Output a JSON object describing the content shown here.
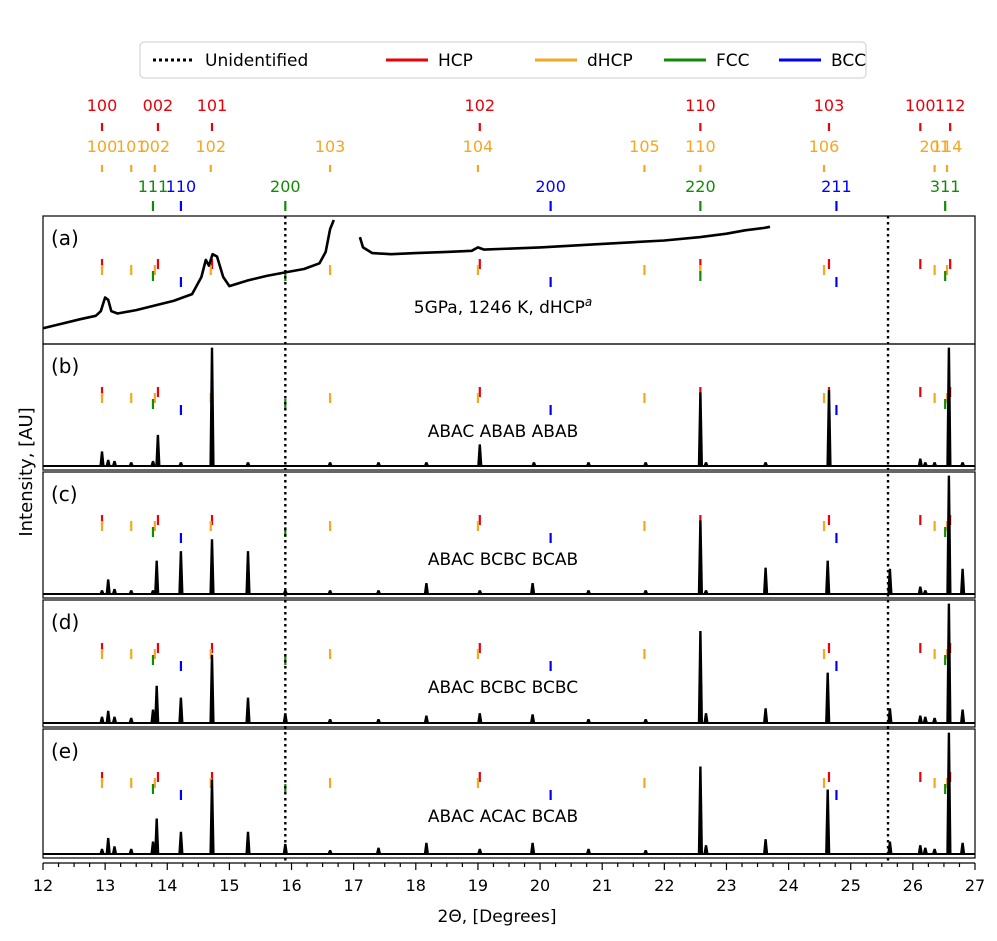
{
  "chart_data": {
    "type": "line",
    "xlabel": "2Θ, [Degrees]",
    "ylabel": "Intensity, [AU]",
    "xlim": [
      12,
      27
    ],
    "x_ticks": [
      "12",
      "13",
      "14",
      "15",
      "16",
      "17",
      "18",
      "19",
      "20",
      "21",
      "22",
      "23",
      "24",
      "25",
      "26",
      "27"
    ],
    "grid": false,
    "legend_position": "top",
    "legend": [
      {
        "name": "Unidentified",
        "style": "dotted",
        "color": "#000000"
      },
      {
        "name": "HCP",
        "style": "solid",
        "color": "#e8000b"
      },
      {
        "name": "dHCP",
        "style": "solid",
        "color": "#f5a623"
      },
      {
        "name": "FCC",
        "style": "solid",
        "color": "#138a07"
      },
      {
        "name": "BCC",
        "style": "solid",
        "color": "#0000ff"
      }
    ],
    "unidentified_lines": [
      15.9,
      25.6
    ],
    "reference_peaks": {
      "HCP": {
        "color": "#e8000b",
        "peaks": [
          {
            "x": 12.95,
            "label": "100"
          },
          {
            "x": 13.85,
            "label": "002"
          },
          {
            "x": 14.72,
            "label": "101"
          },
          {
            "x": 19.03,
            "label": "102"
          },
          {
            "x": 22.58,
            "label": "110"
          },
          {
            "x": 24.65,
            "label": "103"
          },
          {
            "x": 26.12,
            "label": "100"
          },
          {
            "x": 26.6,
            "label": "112"
          }
        ]
      },
      "dHCP": {
        "color": "#f5a623",
        "peaks": [
          {
            "x": 12.95,
            "label": "100"
          },
          {
            "x": 13.42,
            "label": "101"
          },
          {
            "x": 13.8,
            "label": "002"
          },
          {
            "x": 14.7,
            "label": "102"
          },
          {
            "x": 16.62,
            "label": "103"
          },
          {
            "x": 19.0,
            "label": "104"
          },
          {
            "x": 21.68,
            "label": "105"
          },
          {
            "x": 22.58,
            "label": "110"
          },
          {
            "x": 24.57,
            "label": "106"
          },
          {
            "x": 26.35,
            "label": "201"
          },
          {
            "x": 26.55,
            "label": "114"
          }
        ]
      },
      "FCC": {
        "color": "#138a07",
        "peaks": [
          {
            "x": 13.77,
            "label": "111"
          },
          {
            "x": 15.9,
            "label": "200"
          },
          {
            "x": 22.58,
            "label": "220"
          },
          {
            "x": 26.52,
            "label": "311"
          }
        ]
      },
      "BCC": {
        "color": "#0000ff",
        "peaks": [
          {
            "x": 14.22,
            "label": "110"
          },
          {
            "x": 20.17,
            "label": "200"
          },
          {
            "x": 24.77,
            "label": "211"
          }
        ]
      }
    },
    "panels": [
      {
        "label": "(a)",
        "annotation": "5GPa, 1246 K, dHCP",
        "annotation_superscript": "a",
        "segments": [
          [
            [
              12.0,
              0.05
            ],
            [
              12.3,
              0.09
            ],
            [
              12.6,
              0.13
            ],
            [
              12.85,
              0.16
            ],
            [
              12.93,
              0.2
            ],
            [
              13.0,
              0.32
            ],
            [
              13.05,
              0.3
            ],
            [
              13.1,
              0.2
            ],
            [
              13.2,
              0.18
            ],
            [
              13.5,
              0.21
            ],
            [
              13.8,
              0.25
            ],
            [
              14.1,
              0.29
            ],
            [
              14.4,
              0.35
            ],
            [
              14.55,
              0.5
            ],
            [
              14.62,
              0.65
            ],
            [
              14.67,
              0.6
            ],
            [
              14.73,
              0.7
            ],
            [
              14.8,
              0.68
            ],
            [
              14.9,
              0.5
            ],
            [
              15.0,
              0.42
            ],
            [
              15.3,
              0.47
            ],
            [
              15.6,
              0.51
            ],
            [
              15.9,
              0.54
            ],
            [
              16.2,
              0.57
            ],
            [
              16.45,
              0.62
            ],
            [
              16.55,
              0.72
            ],
            [
              16.62,
              0.92
            ],
            [
              16.68,
              1.0
            ]
          ],
          [
            [
              17.1,
              0.85
            ],
            [
              17.15,
              0.76
            ],
            [
              17.3,
              0.71
            ],
            [
              17.6,
              0.7
            ],
            [
              18.0,
              0.71
            ],
            [
              18.5,
              0.72
            ],
            [
              18.9,
              0.73
            ],
            [
              19.0,
              0.76
            ],
            [
              19.1,
              0.74
            ],
            [
              20.0,
              0.76
            ],
            [
              21.0,
              0.79
            ],
            [
              22.0,
              0.82
            ],
            [
              22.58,
              0.85
            ],
            [
              23.0,
              0.88
            ],
            [
              23.3,
              0.91
            ],
            [
              23.6,
              0.93
            ],
            [
              23.7,
              0.94
            ]
          ]
        ],
        "peaks": []
      },
      {
        "label": "(b)",
        "annotation": "ABAC ABAB ABAB",
        "peaks": [
          [
            12.95,
            0.12
          ],
          [
            13.05,
            0.05
          ],
          [
            13.15,
            0.04
          ],
          [
            13.42,
            0.03
          ],
          [
            13.77,
            0.04
          ],
          [
            13.85,
            0.26
          ],
          [
            14.22,
            0.03
          ],
          [
            14.72,
            1.0
          ],
          [
            15.3,
            0.03
          ],
          [
            16.62,
            0.03
          ],
          [
            17.4,
            0.03
          ],
          [
            18.17,
            0.03
          ],
          [
            19.03,
            0.18
          ],
          [
            19.9,
            0.03
          ],
          [
            20.78,
            0.03
          ],
          [
            21.7,
            0.03
          ],
          [
            22.58,
            0.62
          ],
          [
            22.67,
            0.03
          ],
          [
            23.63,
            0.03
          ],
          [
            24.65,
            0.64
          ],
          [
            26.12,
            0.06
          ],
          [
            26.2,
            0.03
          ],
          [
            26.35,
            0.03
          ],
          [
            26.58,
            1.0
          ],
          [
            26.8,
            0.03
          ]
        ]
      },
      {
        "label": "(c)",
        "annotation": "ABAC BCBC BCAB",
        "peaks": [
          [
            12.95,
            0.03
          ],
          [
            13.05,
            0.12
          ],
          [
            13.15,
            0.04
          ],
          [
            13.42,
            0.03
          ],
          [
            13.77,
            0.03
          ],
          [
            13.83,
            0.28
          ],
          [
            14.22,
            0.36
          ],
          [
            14.72,
            0.46
          ],
          [
            15.3,
            0.36
          ],
          [
            15.9,
            0.03
          ],
          [
            16.62,
            0.03
          ],
          [
            17.4,
            0.03
          ],
          [
            18.17,
            0.09
          ],
          [
            19.03,
            0.03
          ],
          [
            19.88,
            0.09
          ],
          [
            20.78,
            0.03
          ],
          [
            21.7,
            0.03
          ],
          [
            22.58,
            0.62
          ],
          [
            22.67,
            0.03
          ],
          [
            23.63,
            0.22
          ],
          [
            24.63,
            0.28
          ],
          [
            25.63,
            0.21
          ],
          [
            26.12,
            0.06
          ],
          [
            26.2,
            0.03
          ],
          [
            26.58,
            1.0
          ],
          [
            26.8,
            0.21
          ]
        ]
      },
      {
        "label": "(d)",
        "annotation": "ABAC BCBC BCBC",
        "peaks": [
          [
            12.95,
            0.05
          ],
          [
            13.05,
            0.1
          ],
          [
            13.15,
            0.05
          ],
          [
            13.42,
            0.04
          ],
          [
            13.77,
            0.11
          ],
          [
            13.83,
            0.31
          ],
          [
            14.22,
            0.21
          ],
          [
            14.72,
            0.57
          ],
          [
            15.3,
            0.21
          ],
          [
            15.9,
            0.08
          ],
          [
            16.62,
            0.03
          ],
          [
            17.4,
            0.03
          ],
          [
            18.17,
            0.06
          ],
          [
            19.03,
            0.08
          ],
          [
            19.88,
            0.07
          ],
          [
            20.78,
            0.03
          ],
          [
            21.7,
            0.03
          ],
          [
            22.58,
            0.77
          ],
          [
            22.67,
            0.08
          ],
          [
            23.63,
            0.12
          ],
          [
            24.63,
            0.42
          ],
          [
            25.63,
            0.12
          ],
          [
            26.12,
            0.06
          ],
          [
            26.2,
            0.05
          ],
          [
            26.35,
            0.04
          ],
          [
            26.58,
            1.0
          ],
          [
            26.8,
            0.11
          ]
        ]
      },
      {
        "label": "(e)",
        "annotation": "ABAC ACAC BCAB",
        "peaks": [
          [
            12.95,
            0.04
          ],
          [
            13.05,
            0.13
          ],
          [
            13.15,
            0.06
          ],
          [
            13.42,
            0.04
          ],
          [
            13.77,
            0.1
          ],
          [
            13.83,
            0.29
          ],
          [
            14.22,
            0.18
          ],
          [
            14.72,
            0.61
          ],
          [
            15.3,
            0.18
          ],
          [
            15.9,
            0.08
          ],
          [
            16.62,
            0.03
          ],
          [
            17.4,
            0.05
          ],
          [
            18.17,
            0.09
          ],
          [
            19.03,
            0.04
          ],
          [
            19.88,
            0.09
          ],
          [
            20.78,
            0.04
          ],
          [
            21.7,
            0.03
          ],
          [
            22.58,
            0.72
          ],
          [
            22.67,
            0.07
          ],
          [
            23.63,
            0.12
          ],
          [
            24.63,
            0.53
          ],
          [
            25.63,
            0.1
          ],
          [
            26.12,
            0.07
          ],
          [
            26.2,
            0.05
          ],
          [
            26.35,
            0.04
          ],
          [
            26.58,
            1.0
          ],
          [
            26.8,
            0.09
          ]
        ]
      }
    ]
  }
}
